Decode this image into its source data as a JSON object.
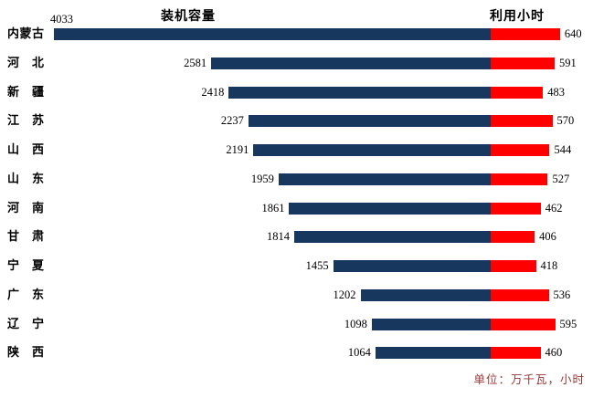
{
  "chart_data": {
    "type": "bar",
    "orientation": "horizontal-diverging",
    "left_title": "装机容量",
    "right_title": "利用小时",
    "footnote": "单位：万千瓦，小时",
    "categories": [
      "内蒙古",
      "河　北",
      "新　疆",
      "江　苏",
      "山　西",
      "山　东",
      "河　南",
      "甘　肃",
      "宁　夏",
      "广　东",
      "辽　宁",
      "陕　西"
    ],
    "series": [
      {
        "name": "装机容量",
        "side": "left",
        "color": "#17375E",
        "values": [
          4033,
          2581,
          2418,
          2237,
          2191,
          1959,
          1861,
          1814,
          1455,
          1202,
          1098,
          1064
        ]
      },
      {
        "name": "利用小时",
        "side": "right",
        "color": "#FE0000",
        "values": [
          640,
          591,
          483,
          570,
          544,
          527,
          462,
          406,
          418,
          536,
          595,
          460
        ]
      }
    ],
    "value_labels": "shown",
    "legend": "none",
    "gridlines": "off",
    "footnote_color": "#943634",
    "text_color": "#000000",
    "background": "#FFFFFF"
  }
}
